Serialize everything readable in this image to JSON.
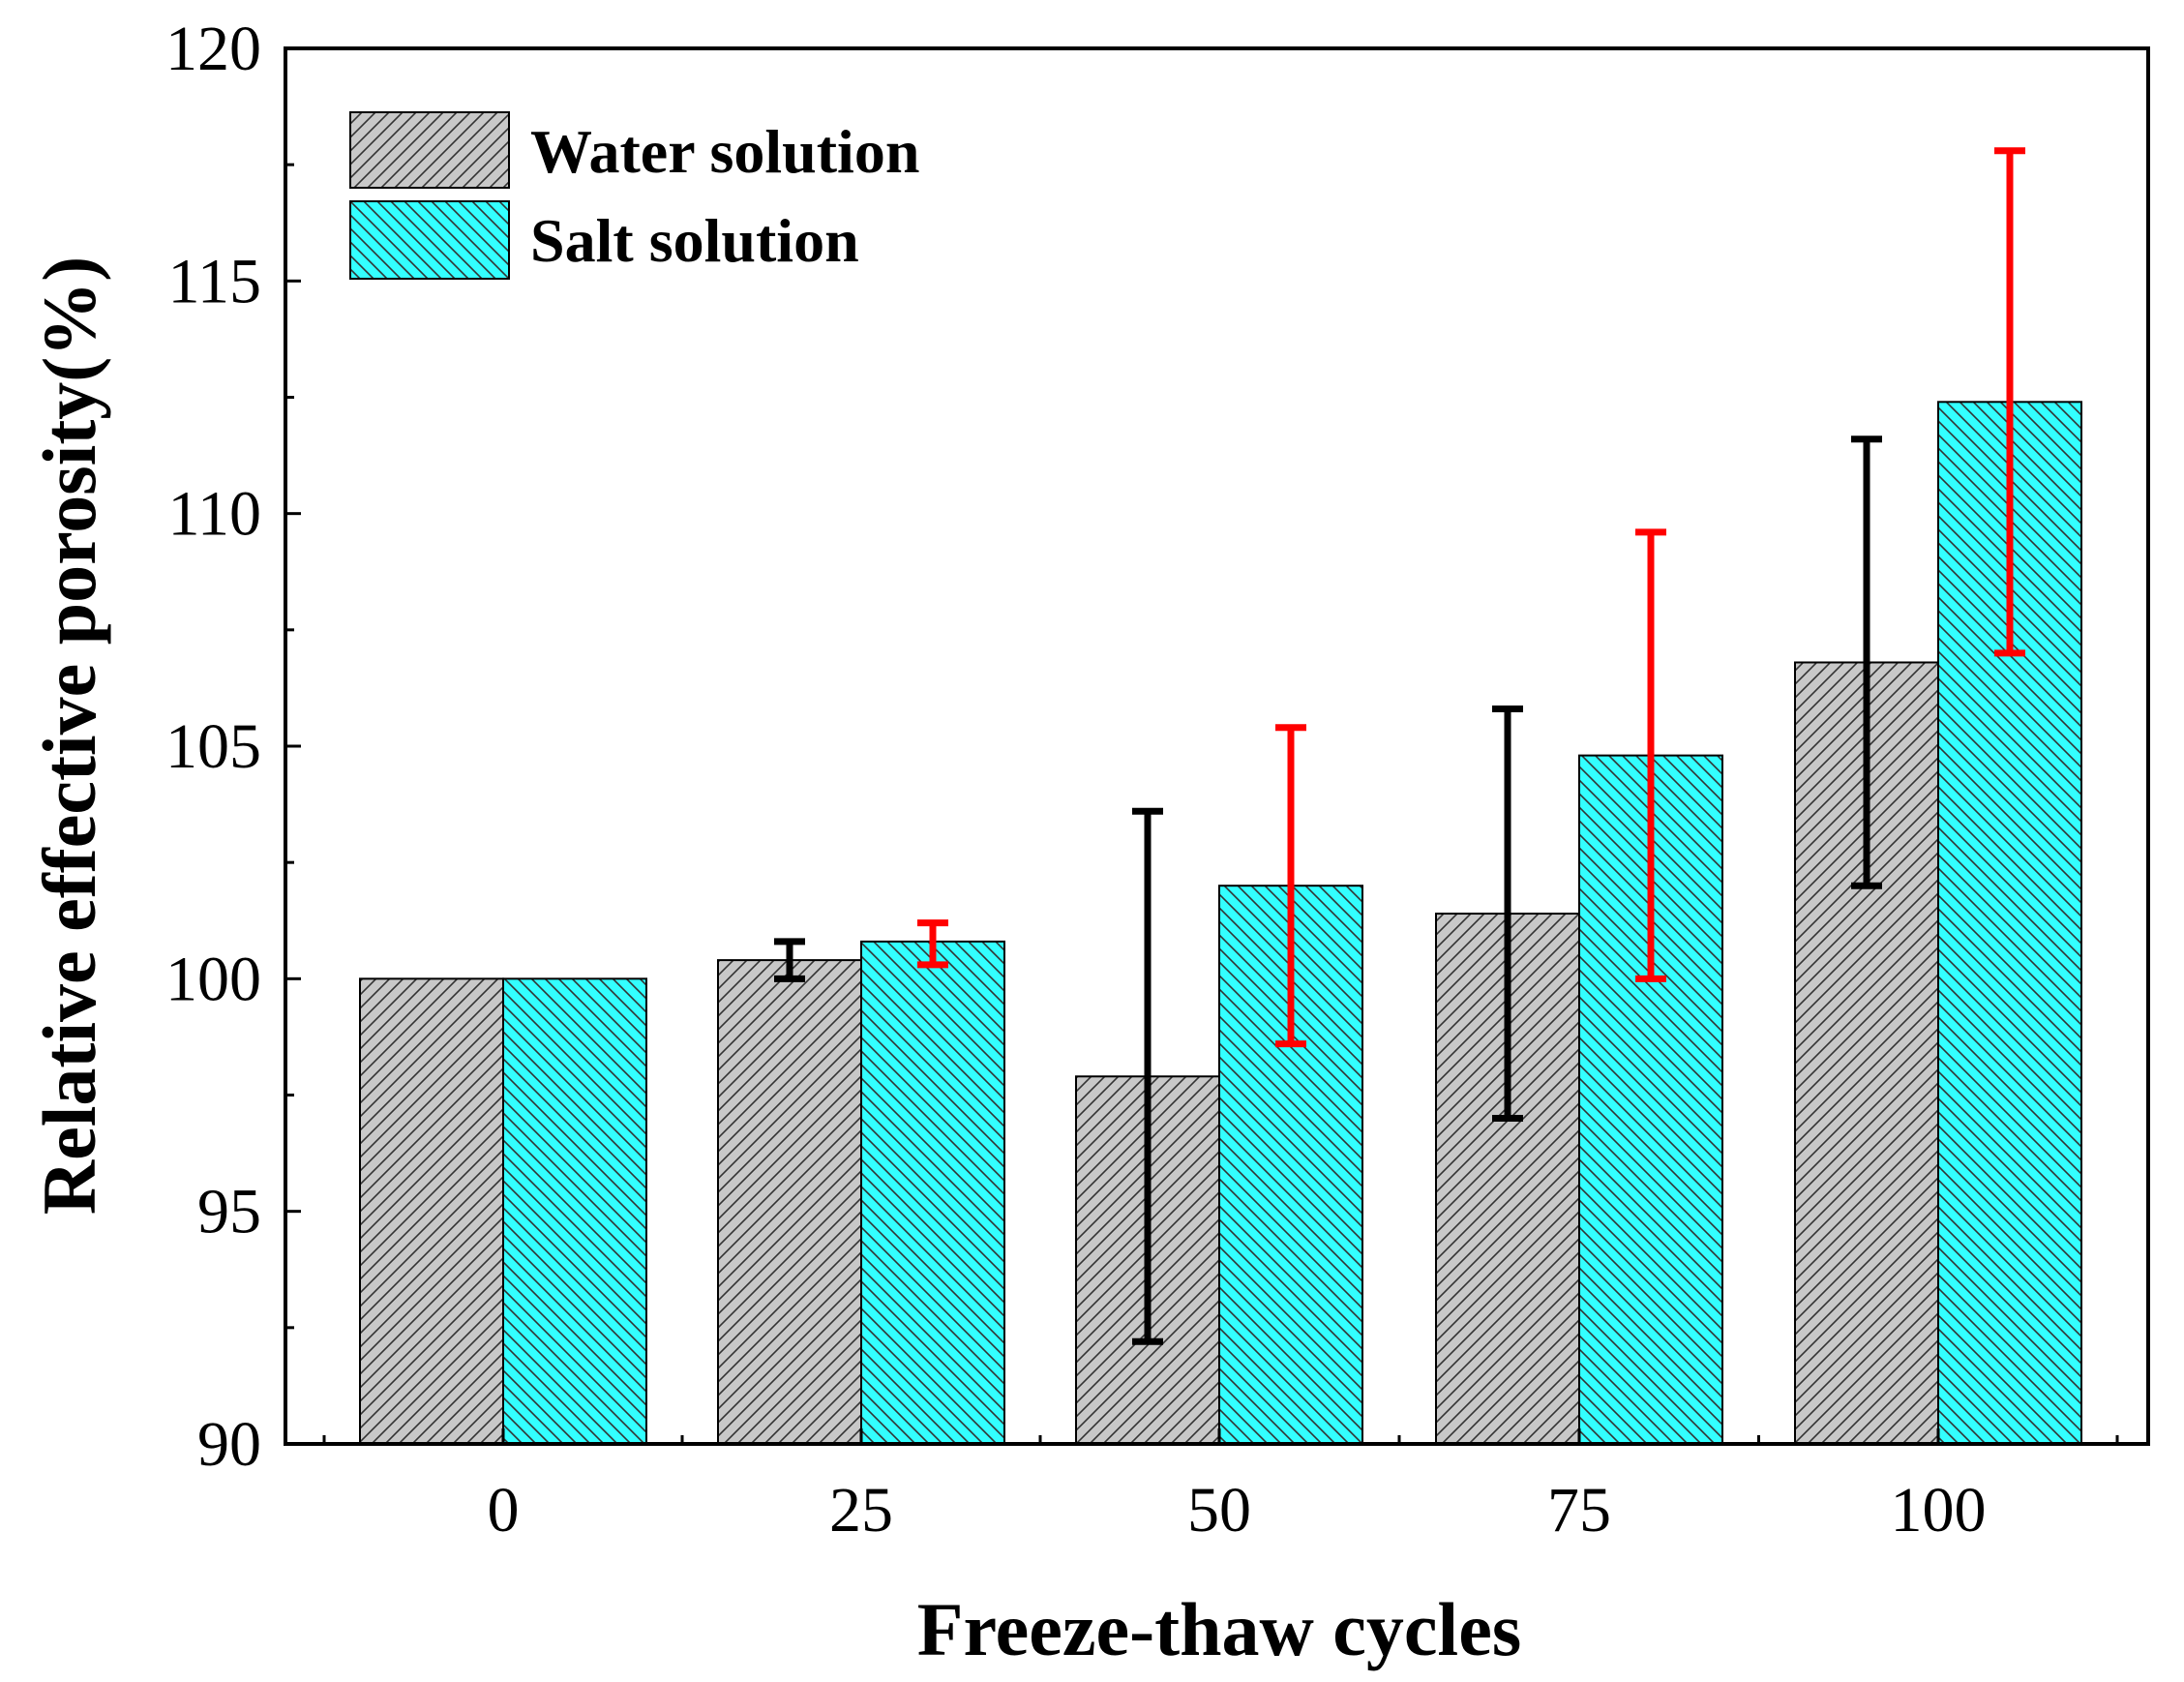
{
  "chart_data": {
    "type": "bar",
    "title": "",
    "xlabel": "Freeze-thaw cycles",
    "ylabel": "Relative effective porosity(%)",
    "categories": [
      "0",
      "25",
      "50",
      "75",
      "100"
    ],
    "ylim": [
      90,
      120
    ],
    "yticks": [
      "90",
      "95",
      "100",
      "105",
      "110",
      "115",
      "120"
    ],
    "legend_position": "top-left",
    "grid": false,
    "series": [
      {
        "name": "Water solution",
        "values": [
          100,
          100.4,
          97.9,
          101.4,
          106.8
        ],
        "error_low": [
          100,
          100.0,
          92.2,
          97.0,
          102.0
        ],
        "error_high": [
          100,
          100.8,
          103.6,
          105.8,
          111.6
        ],
        "fill_color": "#c8c8c8",
        "hatch": "diagonal-up",
        "error_color": "#000000"
      },
      {
        "name": "Salt solution",
        "values": [
          100,
          100.8,
          102.0,
          104.8,
          112.4
        ],
        "error_low": [
          100,
          100.3,
          98.6,
          100.0,
          107.0
        ],
        "error_high": [
          100,
          101.2,
          105.4,
          109.6,
          117.8
        ],
        "fill_color": "#33ffff",
        "hatch": "diagonal-down",
        "error_color": "#ff0000"
      }
    ]
  }
}
